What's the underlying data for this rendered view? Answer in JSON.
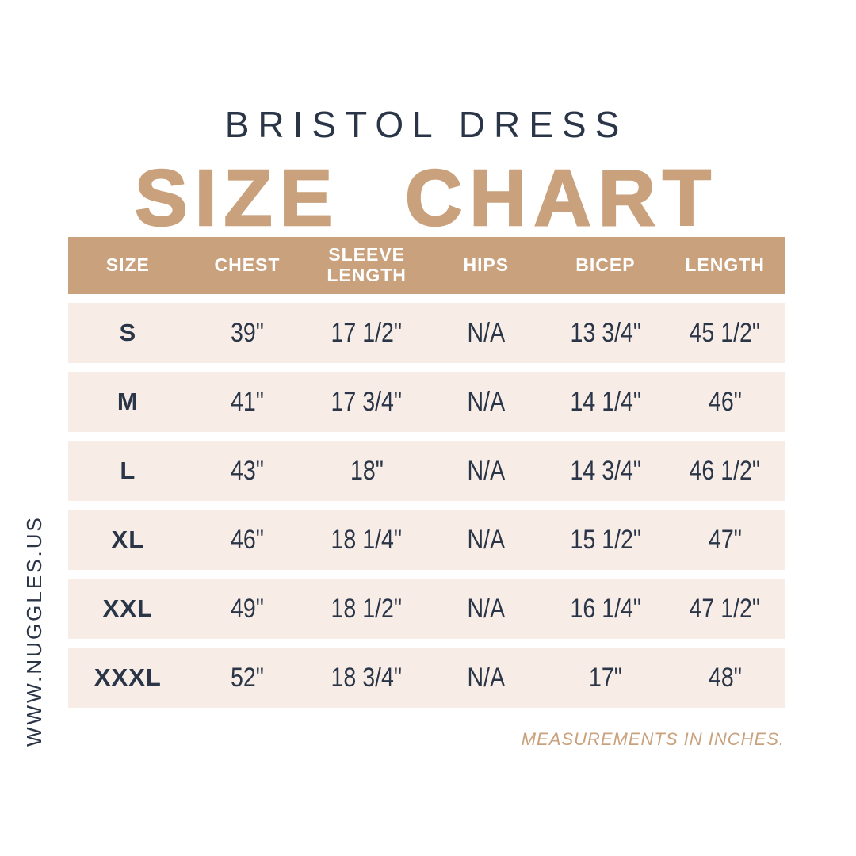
{
  "page": {
    "title": "BRISTOL DRESS",
    "subtitle": "SIZE CHART",
    "website_vertical": "WWW.NUGGLES.US",
    "footnote": "MEASUREMENTS IN INCHES."
  },
  "colors": {
    "navy": "#2a3548",
    "tan": "#c9a27d",
    "row_beige": "#f8ede6",
    "header_text": "#ffffff",
    "background": "#ffffff"
  },
  "chart_data": {
    "type": "table",
    "title": "BRISTOL DRESS SIZE CHART",
    "columns": [
      "SIZE",
      "CHEST",
      "SLEEVE LENGTH",
      "HIPS",
      "BICEP",
      "LENGTH"
    ],
    "rows": [
      [
        "S",
        "39\"",
        "17 1/2\"",
        "N/A",
        "13 3/4\"",
        "45 1/2\""
      ],
      [
        "M",
        "41\"",
        "17 3/4\"",
        "N/A",
        "14 1/4\"",
        "46\""
      ],
      [
        "L",
        "43\"",
        "18\"",
        "N/A",
        "14 3/4\"",
        "46 1/2\""
      ],
      [
        "XL",
        "46\"",
        "18 1/4\"",
        "N/A",
        "15 1/2\"",
        "47\""
      ],
      [
        "XXL",
        "49\"",
        "18 1/2\"",
        "N/A",
        "16 1/4\"",
        "47 1/2\""
      ],
      [
        "XXXL",
        "52\"",
        "18 3/4\"",
        "N/A",
        "17\"",
        "48\""
      ]
    ],
    "note": "MEASUREMENTS IN INCHES.",
    "units": "inches"
  }
}
